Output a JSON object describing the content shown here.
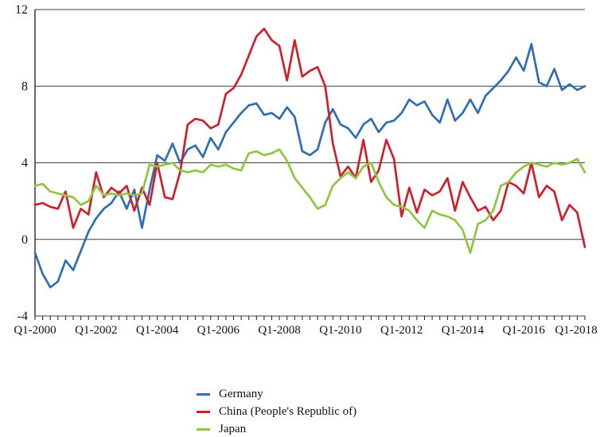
{
  "chart_data": {
    "type": "line",
    "n_points": 73,
    "xtick_labels": [
      "Q1-2000",
      "Q1-2002",
      "Q1-2004",
      "Q1-2006",
      "Q1-2008",
      "Q1-2010",
      "Q1-2012",
      "Q1-2014",
      "Q1-2016",
      "Q1-2018"
    ],
    "xtick_label_every": 8,
    "yticks": [
      -4,
      0,
      4,
      8,
      12
    ],
    "ylim": [
      -4,
      12
    ],
    "grid": "horizontal",
    "legend_position": "bottom-left",
    "series": [
      {
        "name": "Germany",
        "color": "#2f6eb4",
        "values": [
          -0.7,
          -1.8,
          -2.5,
          -2.2,
          -1.1,
          -1.6,
          -0.6,
          0.4,
          1.1,
          1.6,
          1.9,
          2.5,
          1.6,
          2.6,
          0.6,
          2.6,
          4.4,
          4.1,
          5.0,
          4.0,
          4.7,
          4.9,
          4.3,
          5.3,
          4.7,
          5.6,
          6.1,
          6.6,
          7.0,
          7.1,
          6.5,
          6.6,
          6.3,
          6.9,
          6.4,
          4.6,
          4.4,
          4.7,
          6.1,
          6.8,
          6.0,
          5.8,
          5.3,
          6.0,
          6.3,
          5.6,
          6.1,
          6.2,
          6.6,
          7.3,
          7.0,
          7.2,
          6.5,
          6.1,
          7.3,
          6.2,
          6.6,
          7.3,
          6.6,
          7.5,
          7.9,
          8.3,
          8.8,
          9.5,
          8.8,
          10.2,
          8.2,
          8.0,
          8.9,
          7.8,
          8.1,
          7.8,
          8.0
        ]
      },
      {
        "name": "China (People's Republic of)",
        "color": "#cf1f2d",
        "values": [
          1.8,
          1.9,
          1.7,
          1.6,
          2.5,
          0.6,
          1.6,
          1.3,
          3.5,
          2.2,
          2.7,
          2.4,
          2.8,
          1.5,
          2.7,
          1.8,
          4.0,
          2.2,
          2.1,
          3.5,
          6.0,
          6.3,
          6.2,
          5.8,
          6.0,
          7.6,
          7.9,
          8.6,
          9.6,
          10.6,
          11.0,
          10.4,
          10.1,
          8.3,
          10.4,
          8.5,
          8.8,
          9.0,
          8.0,
          5.0,
          3.3,
          3.8,
          3.2,
          5.2,
          3.0,
          3.6,
          5.2,
          4.2,
          1.2,
          2.7,
          1.4,
          2.6,
          2.3,
          2.5,
          3.2,
          1.5,
          3.0,
          2.2,
          1.5,
          1.7,
          1.0,
          1.5,
          3.0,
          2.8,
          2.4,
          4.0,
          2.2,
          2.8,
          2.5,
          1.0,
          1.8,
          1.4,
          -0.4
        ]
      },
      {
        "name": "Japan",
        "color": "#8fc640",
        "values": [
          2.8,
          2.9,
          2.5,
          2.4,
          2.3,
          2.2,
          1.8,
          2.0,
          2.8,
          2.3,
          2.4,
          2.3,
          2.4,
          2.3,
          2.4,
          3.9,
          3.8,
          3.9,
          4.0,
          3.6,
          3.5,
          3.6,
          3.5,
          3.9,
          3.8,
          3.9,
          3.7,
          3.6,
          4.5,
          4.6,
          4.4,
          4.5,
          4.7,
          4.1,
          3.2,
          2.7,
          2.2,
          1.6,
          1.8,
          2.8,
          3.2,
          3.5,
          3.2,
          3.8,
          4.0,
          3.0,
          2.2,
          1.8,
          1.7,
          1.5,
          1.0,
          0.6,
          1.5,
          1.3,
          1.2,
          1.0,
          0.5,
          -0.7,
          0.8,
          1.0,
          1.5,
          2.8,
          3.0,
          3.5,
          3.8,
          4.0,
          3.9,
          3.8,
          4.0,
          3.9,
          4.0,
          4.2,
          3.5
        ]
      }
    ]
  }
}
